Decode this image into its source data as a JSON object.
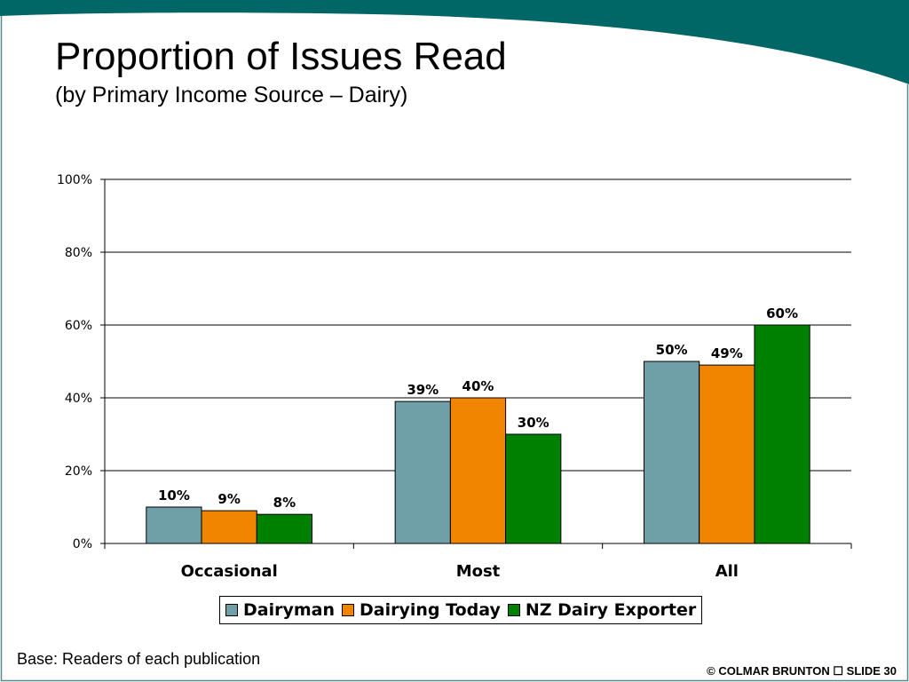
{
  "slide": {
    "title": "Proportion of Issues Read",
    "subtitle": "(by Primary Income Source – Dairy)",
    "base_note": "Base: Readers of each publication",
    "footer": "© COLMAR BRUNTON ☐ SLIDE 30",
    "accent_color": "#006666"
  },
  "chart_data": {
    "type": "bar",
    "categories": [
      "Occasional",
      "Most",
      "All"
    ],
    "series": [
      {
        "name": "Dairyman",
        "color": "#6fa0a8",
        "values": [
          10,
          39,
          50
        ],
        "labels": [
          "10%",
          "39%",
          "50%"
        ]
      },
      {
        "name": "Dairying Today",
        "color": "#f28500",
        "values": [
          9,
          40,
          49
        ],
        "labels": [
          "9%",
          "40%",
          "49%"
        ]
      },
      {
        "name": "NZ Dairy Exporter",
        "color": "#008000",
        "values": [
          8,
          30,
          60
        ],
        "labels": [
          "8%",
          "30%",
          "60%"
        ]
      }
    ],
    "yticks": [
      "0%",
      "20%",
      "40%",
      "60%",
      "80%",
      "100%"
    ],
    "ylim": [
      0,
      100
    ],
    "grid": true,
    "legend": "bottom"
  }
}
